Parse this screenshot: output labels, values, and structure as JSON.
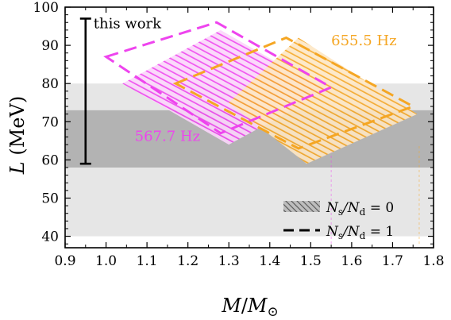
{
  "chart_data": {
    "type": "area",
    "xlabel": "M/M⊙",
    "ylabel": "L (MeV)",
    "xlim": [
      0.9,
      1.8
    ],
    "ylim": [
      37,
      100
    ],
    "x_ticks": [
      0.9,
      1.0,
      1.1,
      1.2,
      1.3,
      1.4,
      1.5,
      1.6,
      1.7,
      1.8
    ],
    "y_ticks": [
      40,
      50,
      60,
      70,
      80,
      90,
      100
    ],
    "x_tick_labels": [
      "0.9",
      "1.0",
      "1.1",
      "1.2",
      "1.3",
      "1.4",
      "1.5",
      "1.6",
      "1.7",
      "1.8"
    ],
    "y_tick_labels": [
      "40",
      "50",
      "60",
      "70",
      "80",
      "90",
      "100"
    ],
    "bands": [
      {
        "y_range": [
          40,
          80
        ],
        "color": "#e6e6e6"
      },
      {
        "y_range": [
          58,
          73
        ],
        "color": "#b3b3b3"
      }
    ],
    "this_work": {
      "label": "this work",
      "x": 0.95,
      "y_range": [
        59,
        97
      ]
    },
    "series": [
      {
        "name": "567.7 Hz",
        "color": "#ee44ee",
        "hatched_region": [
          [
            1.04,
            80
          ],
          [
            1.28,
            94
          ],
          [
            1.54,
            78
          ],
          [
            1.3,
            64
          ]
        ],
        "dashed_region": [
          [
            1.0,
            87
          ],
          [
            1.27,
            96
          ],
          [
            1.55,
            79
          ],
          [
            1.28,
            67
          ]
        ],
        "vertical_line_x": 1.55
      },
      {
        "name": "655.5 Hz",
        "color": "#f5a623",
        "hatched_region": [
          [
            1.3,
            75
          ],
          [
            1.47,
            92
          ],
          [
            1.76,
            72
          ],
          [
            1.49,
            59
          ]
        ],
        "dashed_region": [
          [
            1.17,
            80
          ],
          [
            1.44,
            92
          ],
          [
            1.75,
            74
          ],
          [
            1.47,
            63
          ]
        ],
        "vertical_line_x": 1.765
      }
    ],
    "legend": {
      "position": "bottom-right",
      "entries": [
        {
          "style": "hatched",
          "label_main": "N",
          "label_sub1": "s",
          "label_sep": "/N",
          "label_sub2": "d",
          "label_tail": " = 0"
        },
        {
          "style": "dashed",
          "label_main": "N",
          "label_sub1": "s",
          "label_sep": "/N",
          "label_sub2": "d",
          "label_tail": " = 1"
        }
      ]
    }
  }
}
